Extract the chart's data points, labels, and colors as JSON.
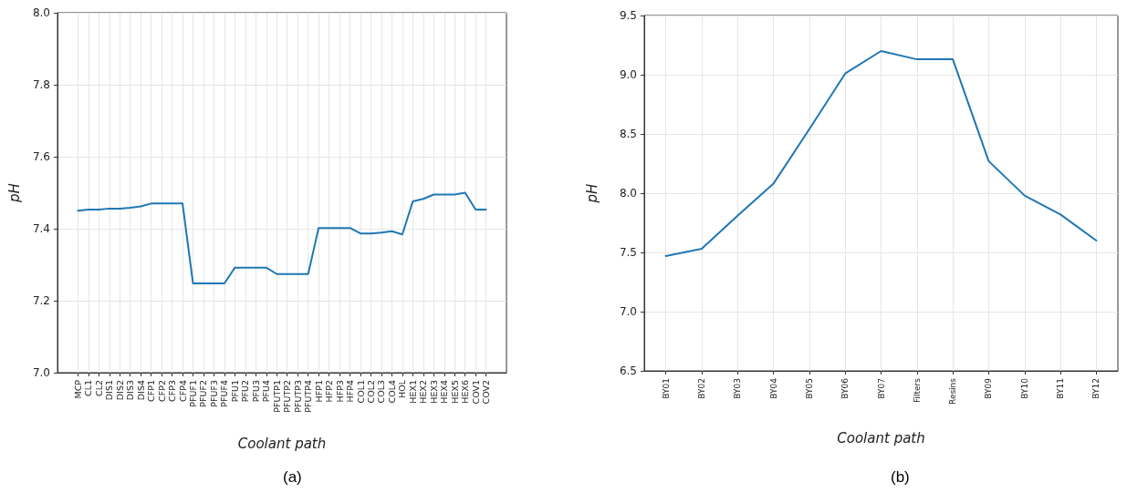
{
  "chart_data": [
    {
      "type": "line",
      "xlabel": "Coolant path",
      "ylabel": "pH",
      "annotations": [
        "(a)"
      ],
      "grid": true,
      "categories": [
        "MCP",
        "CL1",
        "CL2",
        "DIS1",
        "DIS2",
        "DIS3",
        "DIS4",
        "CFP1",
        "CFP2",
        "CFP3",
        "CFP4",
        "PFUF1",
        "PFUF2",
        "PFUF3",
        "PFUF4",
        "PFU1",
        "PFU2",
        "PFU3",
        "PFU4",
        "PFUTP1",
        "PFUTP2",
        "PFUTP3",
        "PFUTP4",
        "HFP1",
        "HFP2",
        "HFP3",
        "HFP4",
        "COL1",
        "COL2",
        "COL3",
        "COL4",
        "HOL",
        "HEX1",
        "HEX2",
        "HEX3",
        "HEX4",
        "HEX5",
        "HEX6",
        "COV1",
        "COV2"
      ],
      "series": [
        {
          "color": "#1f77b4",
          "values": [
            7.45,
            7.453,
            7.453,
            7.456,
            7.456,
            7.458,
            7.462,
            7.47,
            7.47,
            7.47,
            7.47,
            7.248,
            7.248,
            7.248,
            7.248,
            7.292,
            7.292,
            7.292,
            7.292,
            7.274,
            7.274,
            7.274,
            7.274,
            7.402,
            7.402,
            7.402,
            7.402,
            7.387,
            7.387,
            7.389,
            7.393,
            7.384,
            7.476,
            7.483,
            7.495,
            7.495,
            7.495,
            7.5,
            7.453,
            7.453
          ]
        }
      ],
      "ylim": [
        7.0,
        8.0
      ],
      "yticks": [
        {
          "value": 7.0,
          "label": "7.0"
        },
        7.2,
        7.4,
        7.6,
        7.8,
        {
          "value": 8.0,
          "label": "8.0"
        }
      ]
    },
    {
      "type": "line",
      "xlabel": "Coolant path",
      "ylabel": "pH",
      "annotations": [
        "(b)"
      ],
      "grid": true,
      "categories": [
        "BY01",
        "BY02",
        "BY03",
        "BY04",
        "BY05",
        "BY06",
        "BY07",
        "Filters",
        "Resins",
        "BY09",
        "BY10",
        "BY11",
        "BY12"
      ],
      "series": [
        {
          "color": "#1f77b4",
          "values": [
            7.47,
            7.53,
            7.81,
            8.08,
            8.54,
            9.01,
            9.2,
            9.13,
            9.13,
            8.27,
            7.98,
            7.82,
            7.6
          ]
        }
      ],
      "ylim": [
        6.5,
        9.5
      ],
      "yticks": [
        6.5,
        {
          "value": 7.0,
          "label": "7.0"
        },
        7.5,
        {
          "value": 8.0,
          "label": "8.0"
        },
        8.5,
        {
          "value": 9.0,
          "label": "9.0"
        },
        9.5
      ]
    }
  ]
}
